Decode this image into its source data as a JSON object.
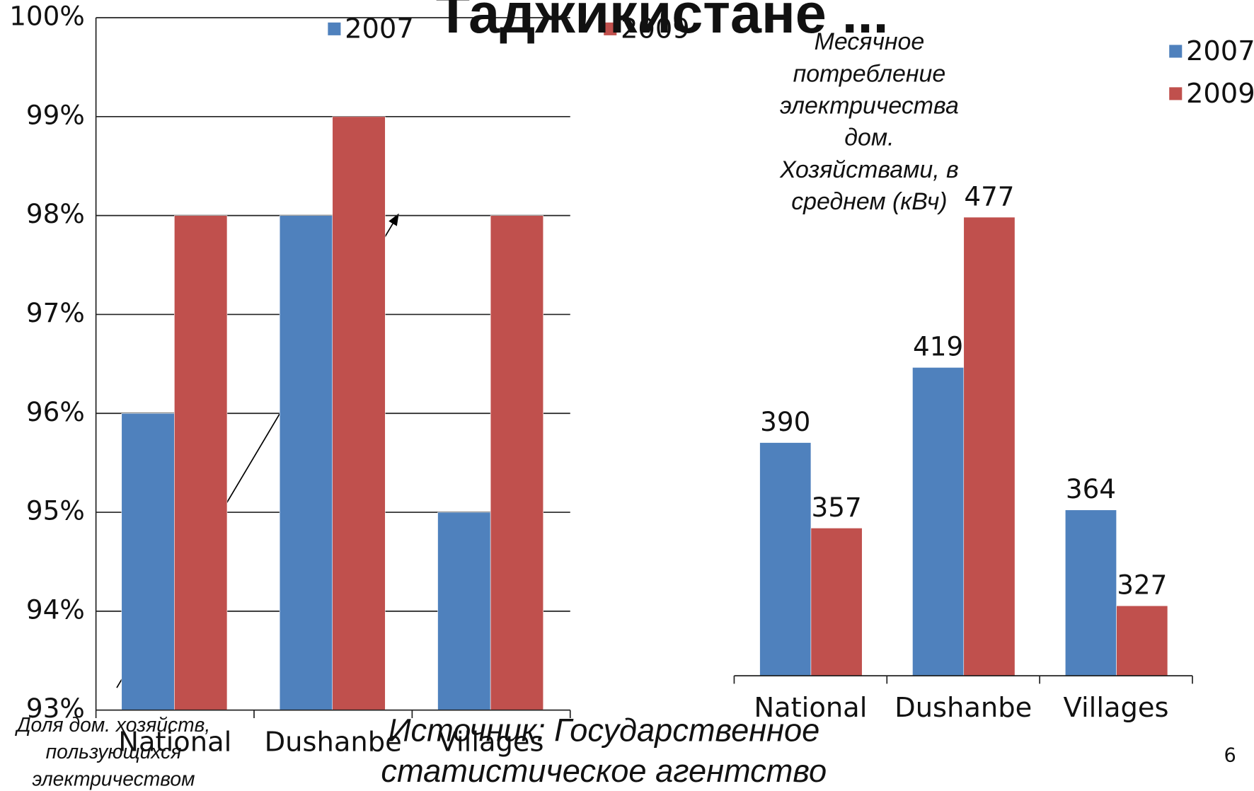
{
  "slide_title": "Таджикистане ...",
  "chart_data": [
    {
      "type": "bar",
      "categories": [
        "National",
        "Dushanbe",
        "Villages"
      ],
      "series": [
        {
          "name": "2007",
          "color": "#4f81bd",
          "values": [
            96,
            98,
            95
          ]
        },
        {
          "name": "2009",
          "color": "#c0504d",
          "values": [
            98,
            99,
            98
          ]
        }
      ],
      "ylim": [
        93,
        100
      ],
      "yticks": [
        {
          "value": 93,
          "label": "93%"
        },
        {
          "value": 94,
          "label": "94%"
        },
        {
          "value": 95,
          "label": "95%"
        },
        {
          "value": 96,
          "label": "96%"
        },
        {
          "value": 97,
          "label": "97%"
        },
        {
          "value": 98,
          "label": "98%"
        },
        {
          "value": 99,
          "label": "99%"
        },
        {
          "value": 100,
          "label": "100%"
        }
      ],
      "grid": true,
      "legend": "top",
      "annotation": [
        "Доля дом. хозяйств,",
        "пользующихся",
        "электричеством"
      ]
    },
    {
      "type": "bar",
      "title": [
        "Месячное",
        "потребление",
        "электричества",
        "дом.",
        "Хозяйствами, в",
        "среднем (кВч)"
      ],
      "categories": [
        "National",
        "Dushanbe",
        "Villages"
      ],
      "series": [
        {
          "name": "2007",
          "color": "#4f81bd",
          "values": [
            390,
            419,
            364
          ]
        },
        {
          "name": "2009",
          "color": "#c0504d",
          "values": [
            357,
            477,
            327
          ]
        }
      ],
      "ylim": [
        300,
        500
      ],
      "data_labels": true,
      "legend": "right"
    }
  ],
  "source": [
    "Источник: Государственное",
    "статистическое агентство"
  ],
  "page_number": "6"
}
